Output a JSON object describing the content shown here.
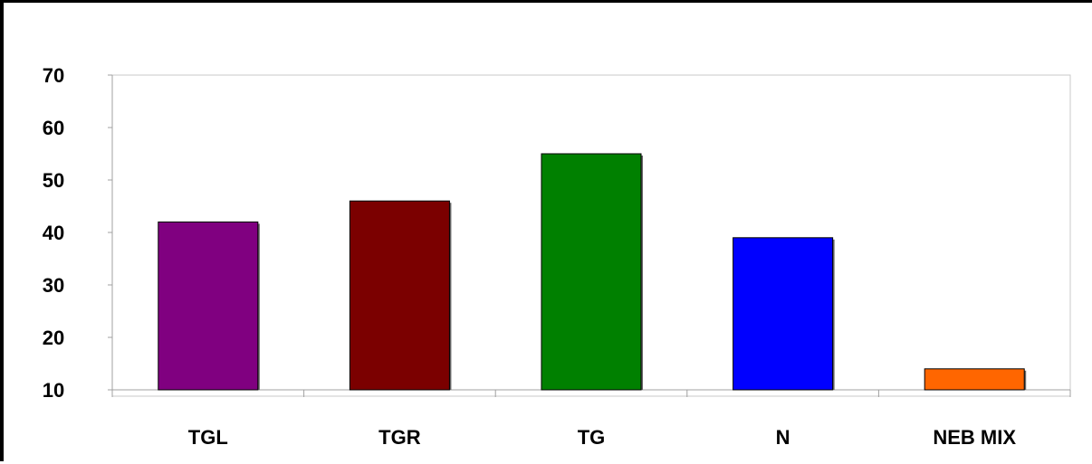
{
  "chart_data": {
    "type": "bar",
    "title": "",
    "xlabel": "",
    "ylabel": "",
    "categories": [
      "TGL",
      "TGR",
      "TG",
      "N",
      "NEB MIX"
    ],
    "values": [
      42,
      46,
      55,
      39,
      14
    ],
    "ylim": [
      10,
      70
    ],
    "yticks": [
      10,
      20,
      30,
      40,
      50,
      60,
      70
    ],
    "bar_colors": [
      "#800080",
      "#7B0000",
      "#008000",
      "#0000FF",
      "#FF6600"
    ],
    "grid": false,
    "legend": "none"
  }
}
